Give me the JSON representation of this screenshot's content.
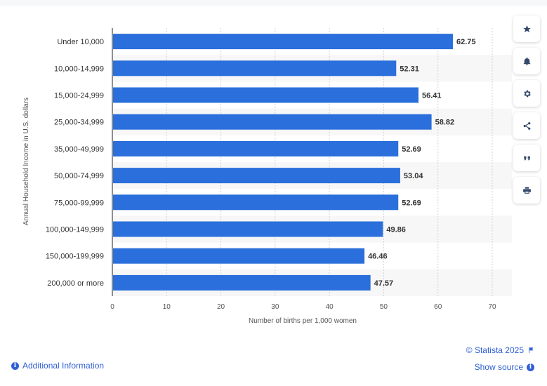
{
  "chart_data": {
    "type": "bar",
    "orientation": "horizontal",
    "categories": [
      "Under 10,000",
      "10,000-14,999",
      "15,000-24,999",
      "25,000-34,999",
      "35,000-49,999",
      "50,000-74,999",
      "75,000-99,999",
      "100,000-149,999",
      "150,000-199,999",
      "200,000 or more"
    ],
    "values": [
      62.75,
      52.31,
      56.41,
      58.82,
      52.69,
      53.04,
      52.69,
      49.86,
      46.46,
      47.57
    ],
    "data_labels": [
      "62.75",
      "52.31",
      "56.41",
      "58.82",
      "52.69",
      "53.04",
      "52.69",
      "49.86",
      "46.46",
      "47.57"
    ],
    "xlabel": "Number of births per 1,000 women",
    "ylabel": "Annual Household Income in U.S. dollars",
    "xlim": [
      0,
      70
    ],
    "xticks": [
      0,
      10,
      20,
      30,
      40,
      50,
      60,
      70
    ],
    "grid": "vertical dashed",
    "bar_color": "#2a6fdb"
  },
  "toolbar": {
    "buttons": [
      "star-icon",
      "bell-icon",
      "gear-icon",
      "share-icon",
      "quote-icon",
      "print-icon"
    ]
  },
  "footer": {
    "copyright": "© Statista 2025",
    "show_source": "Show source",
    "additional_info": "Additional Information"
  },
  "colors": {
    "link": "#2f5fd6",
    "toolbar_icon": "#34486b"
  }
}
